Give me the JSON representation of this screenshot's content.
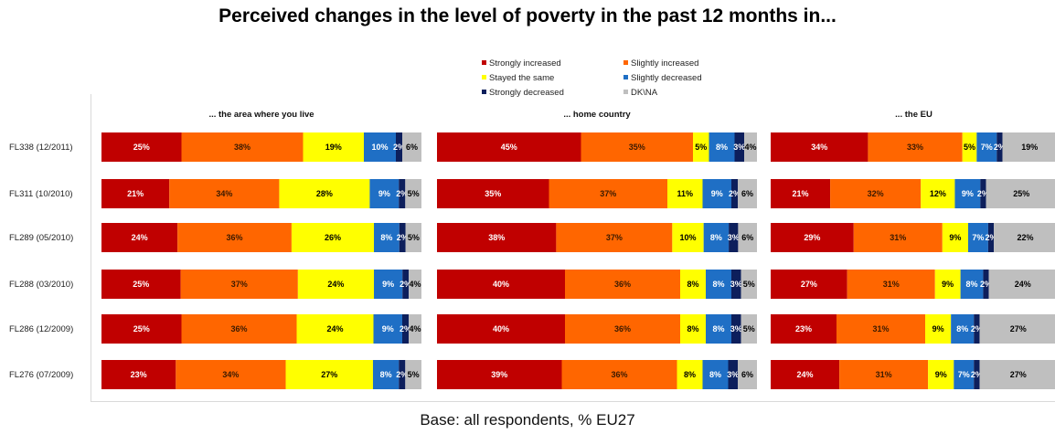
{
  "title": "Perceived changes in the level of poverty in the past 12 months in...",
  "footer": "Base: all respondents, % EU27",
  "chart_data": [
    {
      "type": "bar",
      "orientation": "horizontal-stacked-100",
      "title": "... the area where you live",
      "categories": [
        "FL338 (12/2011)",
        "FL311 (10/2010)",
        "FL289 (05/2010)",
        "FL288 (03/2010)",
        "FL286 (12/2009)",
        "FL276 (07/2009)"
      ],
      "series": [
        {
          "name": "Strongly increased",
          "values": [
            25,
            21,
            24,
            25,
            25,
            23
          ]
        },
        {
          "name": "Slightly increased",
          "values": [
            38,
            34,
            36,
            37,
            36,
            34
          ]
        },
        {
          "name": "Stayed the same",
          "values": [
            19,
            28,
            26,
            24,
            24,
            27
          ]
        },
        {
          "name": "Slightly decreased",
          "values": [
            10,
            9,
            8,
            9,
            9,
            8
          ]
        },
        {
          "name": "Strongly decreased",
          "values": [
            2,
            2,
            2,
            2,
            2,
            2
          ]
        },
        {
          "name": "DK\\NA",
          "values": [
            6,
            5,
            5,
            4,
            4,
            5
          ]
        }
      ]
    },
    {
      "type": "bar",
      "orientation": "horizontal-stacked-100",
      "title": "... home country",
      "categories": [
        "FL338 (12/2011)",
        "FL311 (10/2010)",
        "FL289 (05/2010)",
        "FL288 (03/2010)",
        "FL286 (12/2009)",
        "FL276 (07/2009)"
      ],
      "series": [
        {
          "name": "Strongly increased",
          "values": [
            45,
            35,
            38,
            40,
            40,
            39
          ]
        },
        {
          "name": "Slightly increased",
          "values": [
            35,
            37,
            37,
            36,
            36,
            36
          ]
        },
        {
          "name": "Stayed the same",
          "values": [
            5,
            11,
            10,
            8,
            8,
            8
          ]
        },
        {
          "name": "Slightly decreased",
          "values": [
            8,
            9,
            8,
            8,
            8,
            8
          ]
        },
        {
          "name": "Strongly decreased",
          "values": [
            3,
            2,
            3,
            3,
            3,
            3
          ]
        },
        {
          "name": "DK\\NA",
          "values": [
            4,
            6,
            6,
            5,
            5,
            6
          ]
        }
      ]
    },
    {
      "type": "bar",
      "orientation": "horizontal-stacked-100",
      "title": "... the EU",
      "categories": [
        "FL338 (12/2011)",
        "FL311 (10/2010)",
        "FL289 (05/2010)",
        "FL288 (03/2010)",
        "FL286 (12/2009)",
        "FL276 (07/2009)"
      ],
      "series": [
        {
          "name": "Strongly increased",
          "values": [
            34,
            21,
            29,
            27,
            23,
            24
          ]
        },
        {
          "name": "Slightly increased",
          "values": [
            33,
            32,
            31,
            31,
            31,
            31
          ]
        },
        {
          "name": "Stayed the same",
          "values": [
            5,
            12,
            9,
            9,
            9,
            9
          ]
        },
        {
          "name": "Slightly decreased",
          "values": [
            7,
            9,
            7,
            8,
            8,
            7
          ]
        },
        {
          "name": "Strongly decreased",
          "values": [
            2,
            2,
            2,
            2,
            2,
            2
          ]
        },
        {
          "name": "DK\\NA",
          "values": [
            19,
            25,
            22,
            24,
            27,
            27
          ]
        }
      ]
    }
  ],
  "legend": {
    "placement": "top-center",
    "items": [
      {
        "label": "Strongly increased",
        "color": "#c00000"
      },
      {
        "label": "Slightly increased",
        "color": "#ff6600"
      },
      {
        "label": "Stayed the same",
        "color": "#ffff00"
      },
      {
        "label": "Slightly decreased",
        "color": "#1f6fc5"
      },
      {
        "label": "Strongly decreased",
        "color": "#0d1f5c"
      },
      {
        "label": "DK\\NA",
        "color": "#bfbfbf"
      }
    ]
  },
  "colors": {
    "label_on_dark": "#ffffff",
    "label_on_light": "#000000"
  }
}
